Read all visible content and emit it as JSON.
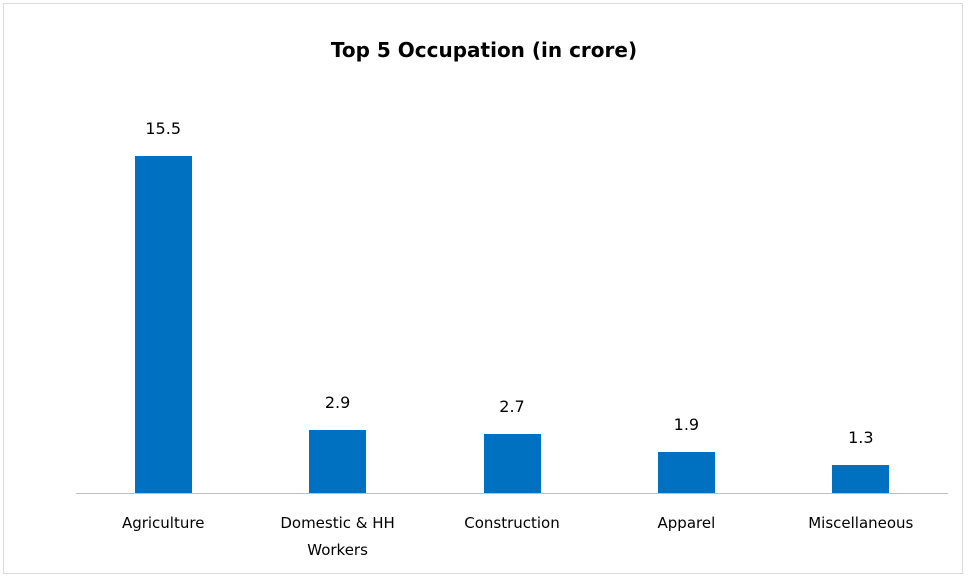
{
  "chart_data": {
    "type": "bar",
    "title": "Top 5 Occupation (in crore)",
    "categories": [
      "Agriculture",
      "Domestic & HH Workers",
      "Construction",
      "Apparel",
      "Miscellaneous"
    ],
    "values": [
      15.5,
      2.9,
      2.7,
      1.9,
      1.3
    ],
    "color": "#0070c0"
  }
}
